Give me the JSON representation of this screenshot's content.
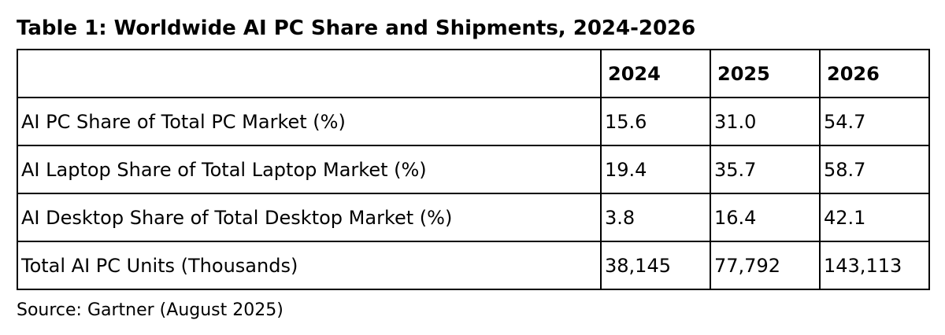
{
  "chart_data": {
    "type": "table",
    "title": "Table 1: Worldwide AI PC Share and Shipments, 2024-2026",
    "columns": [
      "",
      "2024",
      "2025",
      "2026"
    ],
    "rows": [
      [
        "AI PC Share of Total PC Market (%)",
        "15.6",
        "31.0",
        "54.7"
      ],
      [
        "AI Laptop Share of Total Laptop Market (%)",
        "19.4",
        "35.7",
        "58.7"
      ],
      [
        "AI Desktop Share of Total Desktop Market (%)",
        "3.8",
        "16.4",
        "42.1"
      ],
      [
        "Total AI PC Units (Thousands)",
        "38,145",
        "77,792",
        "143,113"
      ]
    ],
    "source": "Source: Gartner (August 2025)"
  }
}
